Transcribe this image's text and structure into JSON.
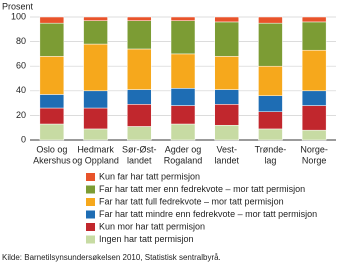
{
  "chart_data": {
    "type": "stacked-bar",
    "y_label": "Prosent",
    "categories": [
      [
        "Oslo og",
        "Akershus"
      ],
      [
        "Hedmark",
        "og Oppland"
      ],
      [
        "Sør-Øst-",
        "landet"
      ],
      [
        "Agder og",
        "Rogaland"
      ],
      [
        "Vest-",
        "landet"
      ],
      [
        "Trønde-",
        "lag"
      ],
      [
        "Norge-",
        "Norge"
      ]
    ],
    "series": [
      {
        "name": "Ingen har tatt permisjon",
        "color": "#c7dba3",
        "values": [
          13,
          9,
          11,
          13,
          12,
          9,
          8
        ]
      },
      {
        "name": "Kun mor har tatt permisjon",
        "color": "#c1272d",
        "values": [
          13,
          17,
          18,
          15,
          17,
          14,
          20
        ]
      },
      {
        "name": "Far har tatt mindre enn fedrekvote – mor tatt permisjon",
        "color": "#1e6db4",
        "values": [
          11,
          14,
          12,
          14,
          12,
          13,
          12
        ]
      },
      {
        "name": "Far har tatt full fedrekvote – mor tatt permisjon",
        "color": "#f6a81c",
        "values": [
          31,
          38,
          33,
          28,
          27,
          24,
          33
        ]
      },
      {
        "name": "Far har tatt mer enn fedrekvote – mor tatt permisjon",
        "color": "#7c9c34",
        "values": [
          27,
          19,
          23,
          27,
          28,
          35,
          23
        ]
      },
      {
        "name": "Kun far har tatt permisjon",
        "color": "#e8532a",
        "values": [
          5,
          3,
          3,
          3,
          4,
          5,
          4
        ]
      }
    ],
    "ylim": [
      0,
      100
    ],
    "yticks": [
      0,
      20,
      40,
      60,
      80,
      100
    ],
    "grid": true,
    "source": "Kilde: Barnetilsynsundersøkelsen 2010, Statistisk sentralbyrå."
  }
}
